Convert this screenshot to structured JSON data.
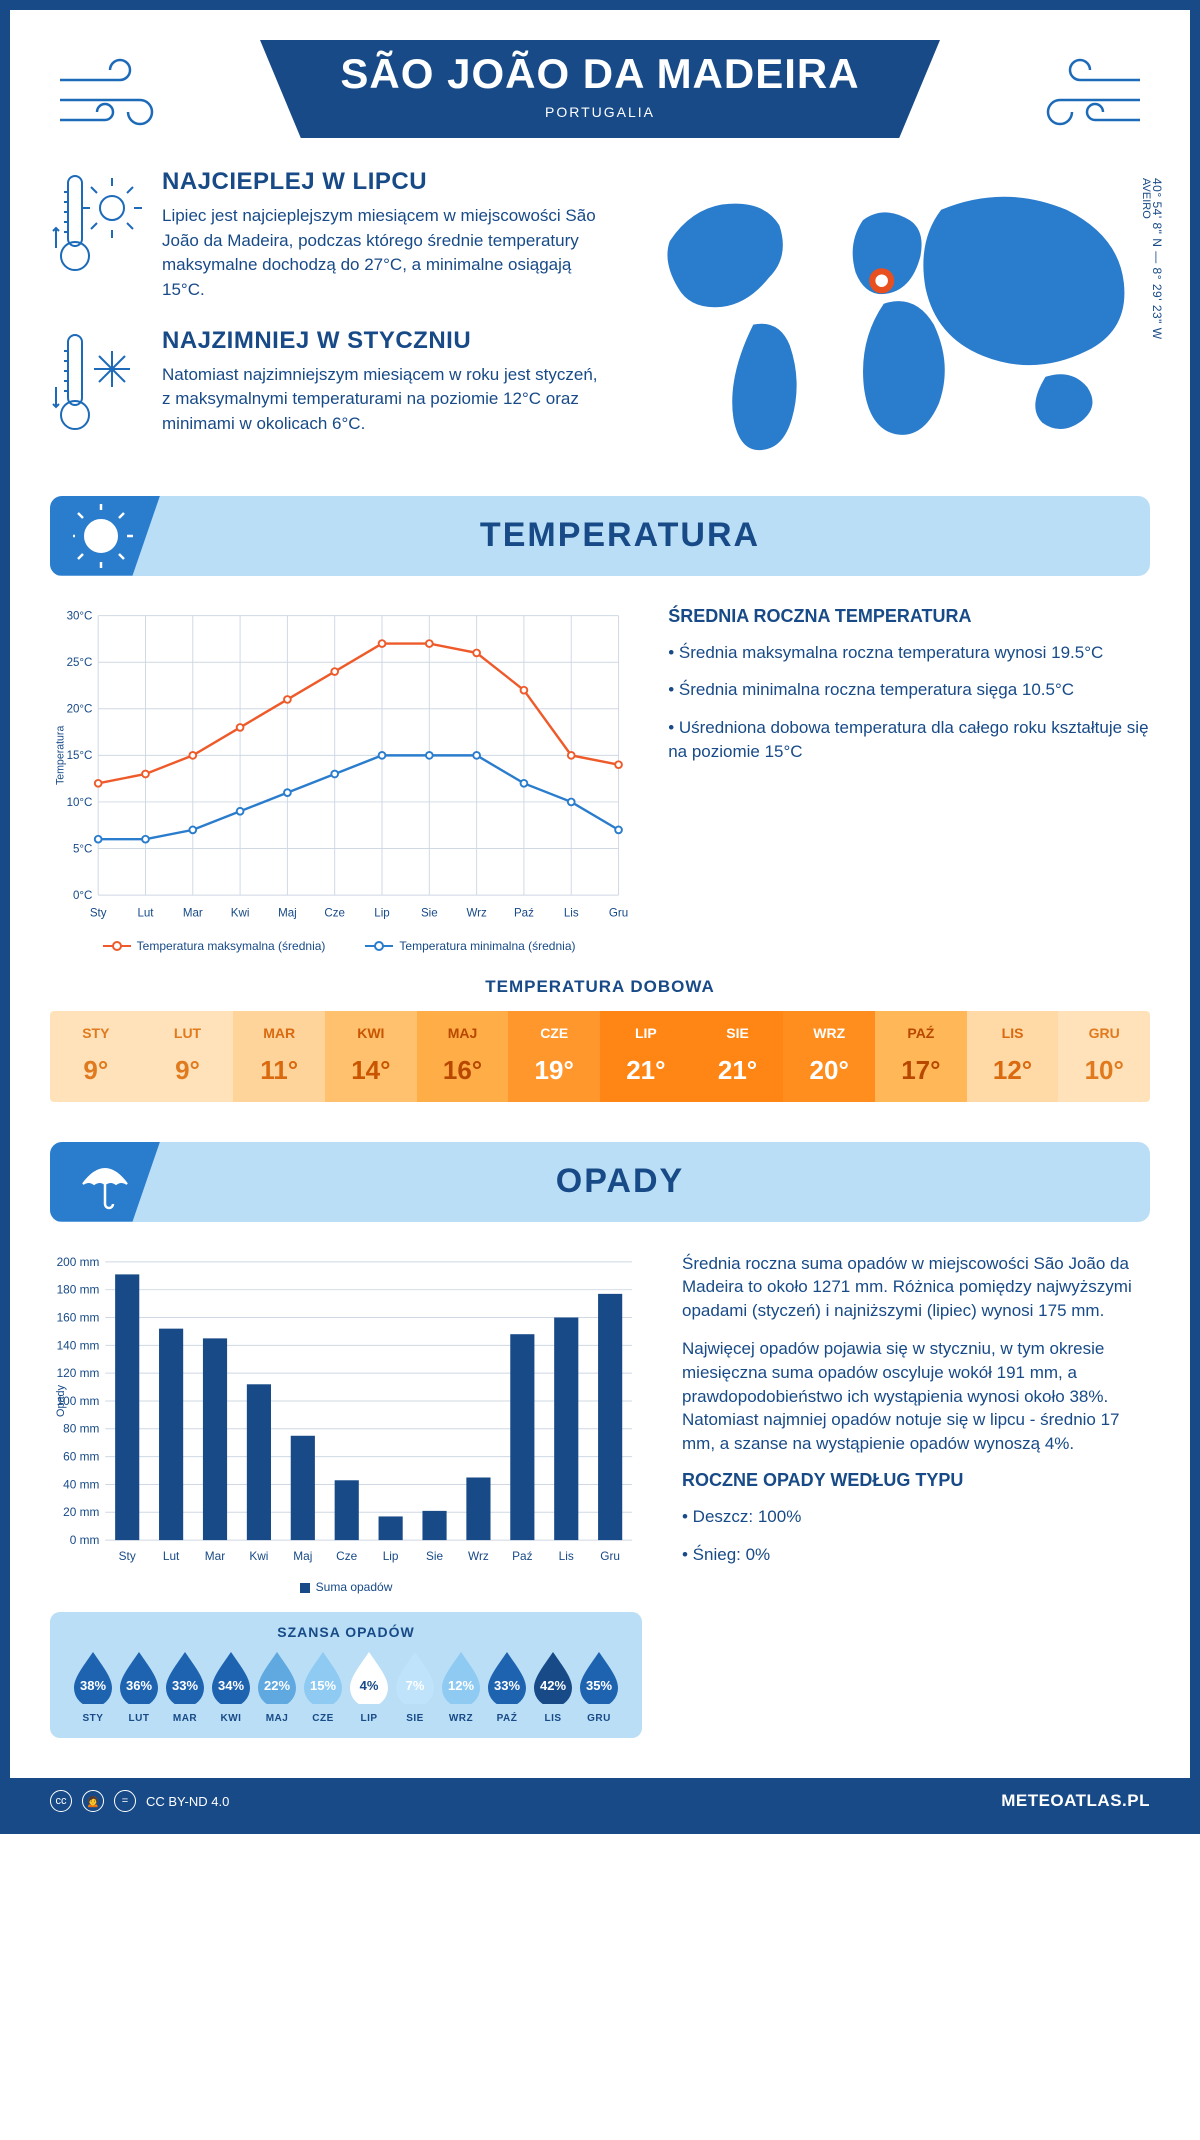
{
  "header": {
    "title": "SÃO JOÃO DA MADEIRA",
    "subtitle": "PORTUGALIA",
    "coords": "40° 54' 8\" N — 8° 29' 23\" W",
    "region": "AVEIRO"
  },
  "info": {
    "hot": {
      "title": "NAJCIEPLEJ W LIPCU",
      "text": "Lipiec jest najcieplejszym miesiącem w miejscowości São João da Madeira, podczas którego średnie temperatury maksymalne dochodzą do 27°C, a minimalne osiągają 15°C."
    },
    "cold": {
      "title": "NAJZIMNIEJ W STYCZNIU",
      "text": "Natomiast najzimniejszym miesiącem w roku jest styczeń, z maksymalnymi temperaturami na poziomie 12°C oraz minimami w okolicach 6°C."
    }
  },
  "temperature": {
    "section_title": "TEMPERATURA",
    "chart": {
      "months": [
        "Sty",
        "Lut",
        "Mar",
        "Kwi",
        "Maj",
        "Cze",
        "Lip",
        "Sie",
        "Wrz",
        "Paź",
        "Lis",
        "Gru"
      ],
      "max": [
        12,
        13,
        15,
        18,
        21,
        24,
        27,
        27,
        26,
        22,
        15,
        14
      ],
      "min": [
        6,
        6,
        7,
        9,
        11,
        13,
        15,
        15,
        15,
        12,
        10,
        7
      ],
      "max_color": "#ee5a2a",
      "min_color": "#2a7ccd",
      "ylim": [
        0,
        30
      ],
      "ytick_step": 5,
      "y_unit": "°C",
      "ylabel": "Temperatura",
      "grid_color": "#cfd8e3",
      "legend_max": "Temperatura maksymalna (średnia)",
      "legend_min": "Temperatura minimalna (średnia)"
    },
    "side": {
      "title": "ŚREDNIA ROCZNA TEMPERATURA",
      "bullets": [
        "• Średnia maksymalna roczna temperatura wynosi 19.5°C",
        "• Średnia minimalna roczna temperatura sięga 10.5°C",
        "• Uśredniona dobowa temperatura dla całego roku kształtuje się na poziomie 15°C"
      ]
    },
    "daily": {
      "title": "TEMPERATURA DOBOWA",
      "months": [
        "STY",
        "LUT",
        "MAR",
        "KWI",
        "MAJ",
        "CZE",
        "LIP",
        "SIE",
        "WRZ",
        "PAŹ",
        "LIS",
        "GRU"
      ],
      "values": [
        "9°",
        "9°",
        "11°",
        "14°",
        "16°",
        "19°",
        "21°",
        "21°",
        "20°",
        "17°",
        "12°",
        "10°"
      ],
      "bg_colors": [
        "#ffe2b9",
        "#ffe2b9",
        "#ffd49a",
        "#ffc16e",
        "#ffad47",
        "#ff972c",
        "#ff8614",
        "#ff8614",
        "#ff8e1f",
        "#ffb758",
        "#ffd9a6",
        "#ffe2b9"
      ],
      "text_colors": [
        "#e07a1f",
        "#e07a1f",
        "#d96a10",
        "#c95500",
        "#b84800",
        "#ffffff",
        "#ffffff",
        "#ffffff",
        "#ffffff",
        "#b84800",
        "#d96a10",
        "#e07a1f"
      ]
    }
  },
  "precipitation": {
    "section_title": "OPADY",
    "bar": {
      "months": [
        "Sty",
        "Lut",
        "Mar",
        "Kwi",
        "Maj",
        "Cze",
        "Lip",
        "Sie",
        "Wrz",
        "Paź",
        "Lis",
        "Gru"
      ],
      "values": [
        191,
        152,
        145,
        112,
        75,
        43,
        17,
        21,
        45,
        148,
        160,
        177
      ],
      "ylim": [
        0,
        200
      ],
      "ytick_step": 20,
      "y_unit": " mm",
      "ylabel": "Opady",
      "bar_color": "#174a87",
      "legend": "Suma opadów"
    },
    "side": {
      "para1": "Średnia roczna suma opadów w miejscowości São João da Madeira to około 1271 mm. Różnica pomiędzy najwyższymi opadami (styczeń) i najniższymi (lipiec) wynosi 175 mm.",
      "para2": "Najwięcej opadów pojawia się w styczniu, w tym okresie miesięczna suma opadów oscyluje wokół 191 mm, a prawdopodobieństwo ich wystąpienia wynosi około 38%. Natomiast najmniej opadów notuje się w lipcu - średnio 17 mm, a szanse na wystąpienie opadów wynoszą 4%.",
      "type_title": "ROCZNE OPADY WEDŁUG TYPU",
      "types": [
        "• Deszcz: 100%",
        "• Śnieg: 0%"
      ]
    },
    "chance": {
      "title": "SZANSA OPADÓW",
      "months": [
        "STY",
        "LUT",
        "MAR",
        "KWI",
        "MAJ",
        "CZE",
        "LIP",
        "SIE",
        "WRZ",
        "PAŹ",
        "LIS",
        "GRU"
      ],
      "pct": [
        38,
        36,
        33,
        34,
        22,
        15,
        4,
        7,
        12,
        33,
        42,
        35
      ]
    }
  },
  "footer": {
    "license": "CC BY-ND 4.0",
    "site": "METEOATLAS.PL"
  },
  "colors": {
    "primary": "#174a87",
    "accent": "#2a7ccd",
    "banner_bg": "#b9def6"
  }
}
